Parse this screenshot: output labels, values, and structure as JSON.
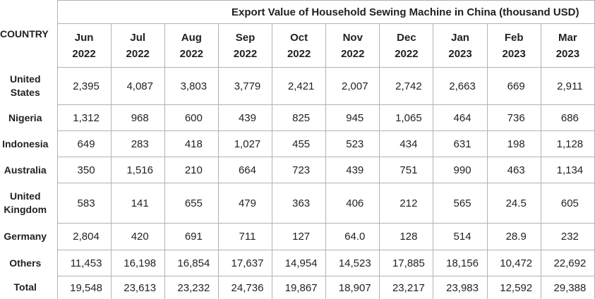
{
  "table": {
    "title": "Export Value of Household Sewing Machine in China (thousand USD)",
    "corner_header": "COUNTRY",
    "columns": [
      {
        "month": "Jun",
        "year": "2022"
      },
      {
        "month": "Jul",
        "year": "2022"
      },
      {
        "month": "Aug",
        "year": "2022"
      },
      {
        "month": "Sep",
        "year": "2022"
      },
      {
        "month": "Oct",
        "year": "2022"
      },
      {
        "month": "Nov",
        "year": "2022"
      },
      {
        "month": "Dec",
        "year": "2022"
      },
      {
        "month": "Jan",
        "year": "2023"
      },
      {
        "month": "Feb",
        "year": "2023"
      },
      {
        "month": "Mar",
        "year": "2023"
      }
    ],
    "rows": [
      {
        "country": "United States",
        "values": [
          "2,395",
          "4,087",
          "3,803",
          "3,779",
          "2,421",
          "2,007",
          "2,742",
          "2,663",
          "669",
          "2,911"
        ]
      },
      {
        "country": "Nigeria",
        "values": [
          "1,312",
          "968",
          "600",
          "439",
          "825",
          "945",
          "1,065",
          "464",
          "736",
          "686"
        ]
      },
      {
        "country": "Indonesia",
        "values": [
          "649",
          "283",
          "418",
          "1,027",
          "455",
          "523",
          "434",
          "631",
          "198",
          "1,128"
        ]
      },
      {
        "country": "Australia",
        "values": [
          "350",
          "1,516",
          "210",
          "664",
          "723",
          "439",
          "751",
          "990",
          "463",
          "1,134"
        ]
      },
      {
        "country": "United Kingdom",
        "values": [
          "583",
          "141",
          "655",
          "479",
          "363",
          "406",
          "212",
          "565",
          "24.5",
          "605"
        ]
      },
      {
        "country": "Germany",
        "values": [
          "2,804",
          "420",
          "691",
          "711",
          "127",
          "64.0",
          "128",
          "514",
          "28.9",
          "232"
        ]
      },
      {
        "country": "Others",
        "values": [
          "11,453",
          "16,198",
          "16,854",
          "17,637",
          "14,954",
          "14,523",
          "17,885",
          "18,156",
          "10,472",
          "22,692"
        ]
      },
      {
        "country": "Total",
        "values": [
          "19,548",
          "23,613",
          "23,232",
          "24,736",
          "19,867",
          "18,907",
          "23,217",
          "23,983",
          "12,592",
          "29,388"
        ]
      }
    ],
    "colors": {
      "border": "#b2b2b2",
      "text": "#1f2023"
    }
  },
  "chart_data": {
    "type": "table",
    "title": "Export Value of Household Sewing Machine in China (thousand USD)",
    "row_header": "COUNTRY",
    "unit": "thousand USD",
    "categories": [
      "Jun 2022",
      "Jul 2022",
      "Aug 2022",
      "Sep 2022",
      "Oct 2022",
      "Nov 2022",
      "Dec 2022",
      "Jan 2023",
      "Feb 2023",
      "Mar 2023"
    ],
    "series": [
      {
        "name": "United States",
        "values": [
          2395,
          4087,
          3803,
          3779,
          2421,
          2007,
          2742,
          2663,
          669,
          2911
        ]
      },
      {
        "name": "Nigeria",
        "values": [
          1312,
          968,
          600,
          439,
          825,
          945,
          1065,
          464,
          736,
          686
        ]
      },
      {
        "name": "Indonesia",
        "values": [
          649,
          283,
          418,
          1027,
          455,
          523,
          434,
          631,
          198,
          1128
        ]
      },
      {
        "name": "Australia",
        "values": [
          350,
          1516,
          210,
          664,
          723,
          439,
          751,
          990,
          463,
          1134
        ]
      },
      {
        "name": "United Kingdom",
        "values": [
          583,
          141,
          655,
          479,
          363,
          406,
          212,
          565,
          24.5,
          605
        ]
      },
      {
        "name": "Germany",
        "values": [
          2804,
          420,
          691,
          711,
          127,
          64.0,
          128,
          514,
          28.9,
          232
        ]
      },
      {
        "name": "Others",
        "values": [
          11453,
          16198,
          16854,
          17637,
          14954,
          14523,
          17885,
          18156,
          10472,
          22692
        ]
      },
      {
        "name": "Total",
        "values": [
          19548,
          23613,
          23232,
          24736,
          19867,
          18907,
          23217,
          23983,
          12592,
          29388
        ]
      }
    ]
  }
}
